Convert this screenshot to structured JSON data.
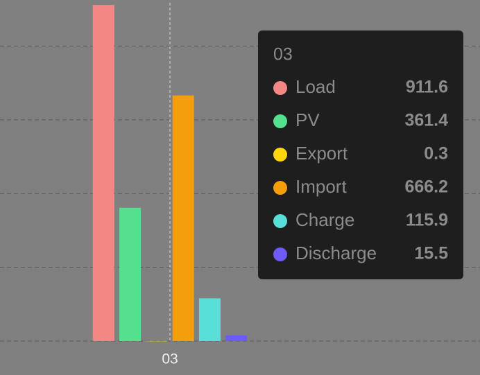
{
  "chart_data": {
    "type": "bar",
    "categories": [
      "03"
    ],
    "series": [
      {
        "name": "Load",
        "color": "#f28784",
        "values": [
          911.6
        ]
      },
      {
        "name": "PV",
        "color": "#55e08f",
        "values": [
          361.4
        ]
      },
      {
        "name": "Export",
        "color": "#ffd60a",
        "values": [
          0.3
        ]
      },
      {
        "name": "Import",
        "color": "#f59e0b",
        "values": [
          666.2
        ]
      },
      {
        "name": "Charge",
        "color": "#58e0d8",
        "values": [
          115.9
        ]
      },
      {
        "name": "Discharge",
        "color": "#6c5cf5",
        "values": [
          15.5
        ]
      }
    ],
    "ylim": [
      0,
      925
    ],
    "yticks": [
      0,
      200,
      400,
      600,
      800
    ],
    "grid": true
  }
}
